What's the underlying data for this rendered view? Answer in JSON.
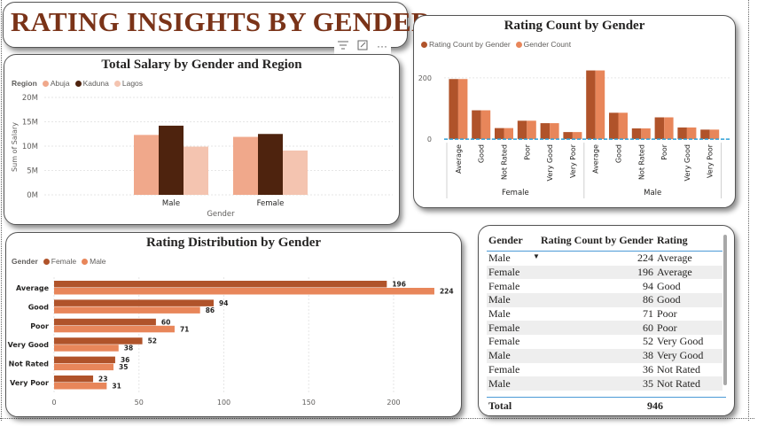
{
  "dashboard": {
    "title": "RATING INSIGHTS BY GENDER"
  },
  "visual_header": {
    "filter_icon": "filter-icon",
    "focus_icon": "focus-mode-icon",
    "more_icon": "more-options-icon"
  },
  "colors": {
    "female": "#b0532a",
    "male": "#e8865a",
    "abuja": "#f0a88b",
    "kaduna": "#4e230e",
    "lagos": "#f4c4b0",
    "title": "#7a3318",
    "table_rule": "#4b9ad6",
    "baseline": "#2ea0d8"
  },
  "salary_chart": {
    "title": "Total Salary by Gender and Region",
    "legend_title": "Region",
    "chart_data": {
      "type": "bar",
      "title": "Total Salary by Gender and Region",
      "xlabel": "Gender",
      "ylabel": "Sum of Salary",
      "categories": [
        "Male",
        "Female"
      ],
      "series": [
        {
          "name": "Abuja",
          "values": [
            12.3,
            11.9
          ]
        },
        {
          "name": "Kaduna",
          "values": [
            14.2,
            12.5
          ]
        },
        {
          "name": "Lagos",
          "values": [
            9.9,
            9.1
          ]
        }
      ],
      "y_ticks": [
        "0M",
        "5M",
        "10M",
        "15M",
        "20M"
      ],
      "ylim": [
        0,
        20
      ],
      "grid": true,
      "legend_position": "top-left"
    }
  },
  "rating_count_chart": {
    "title": "Rating Count by Gender",
    "chart_data": {
      "type": "bar",
      "title": "Rating Count by Gender",
      "groups": [
        {
          "name": "Female",
          "categories": [
            "Average",
            "Good",
            "Not Rated",
            "Poor",
            "Very Good",
            "Very Poor"
          ]
        },
        {
          "name": "Male",
          "categories": [
            "Average",
            "Good",
            "Not Rated",
            "Poor",
            "Very Good",
            "Very Poor"
          ]
        }
      ],
      "series": [
        {
          "name": "Rating Count by Gender",
          "values": [
            196,
            94,
            36,
            60,
            52,
            23,
            224,
            86,
            35,
            71,
            38,
            31
          ]
        },
        {
          "name": "Gender Count",
          "values": [
            196,
            94,
            36,
            60,
            52,
            23,
            224,
            86,
            35,
            71,
            38,
            31
          ]
        }
      ],
      "y_ticks": [
        "0",
        "200"
      ],
      "ylim": [
        -20,
        240
      ],
      "grid": true,
      "legend_position": "top-left"
    }
  },
  "distribution_chart": {
    "title": "Rating Distribution by Gender",
    "legend_title": "Gender",
    "chart_data": {
      "type": "bar",
      "orientation": "horizontal",
      "title": "Rating Distribution by Gender",
      "categories": [
        "Average",
        "Good",
        "Poor",
        "Very Good",
        "Not Rated",
        "Very Poor"
      ],
      "series": [
        {
          "name": "Female",
          "values": [
            196,
            94,
            60,
            52,
            36,
            23
          ]
        },
        {
          "name": "Male",
          "values": [
            224,
            86,
            71,
            38,
            35,
            31
          ]
        }
      ],
      "x_ticks": [
        "0",
        "50",
        "100",
        "150",
        "200"
      ],
      "xlim": [
        0,
        230
      ],
      "grid": true,
      "legend_position": "top-left"
    }
  },
  "table": {
    "columns": [
      "Gender",
      "Rating Count by Gender",
      "Rating"
    ],
    "rows": [
      [
        "Male",
        "224",
        "Average"
      ],
      [
        "Female",
        "196",
        "Average"
      ],
      [
        "Female",
        "94",
        "Good"
      ],
      [
        "Male",
        "86",
        "Good"
      ],
      [
        "Male",
        "71",
        "Poor"
      ],
      [
        "Female",
        "60",
        "Poor"
      ],
      [
        "Female",
        "52",
        "Very Good"
      ],
      [
        "Male",
        "38",
        "Very Good"
      ],
      [
        "Female",
        "36",
        "Not Rated"
      ],
      [
        "Male",
        "35",
        "Not Rated"
      ]
    ],
    "total_label": "Total",
    "total_value": "946"
  }
}
